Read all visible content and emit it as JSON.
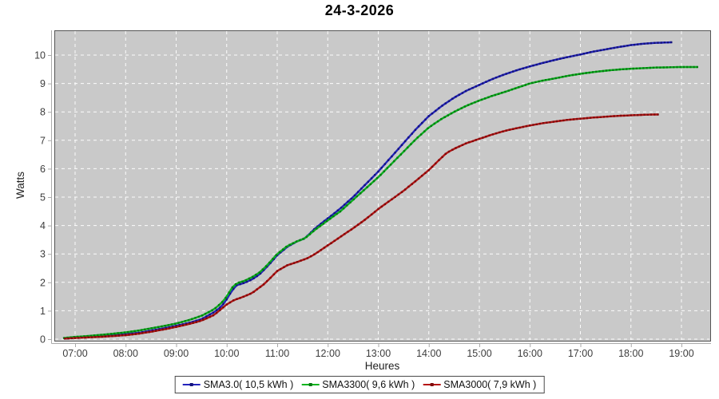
{
  "title": "24-3-2026",
  "axes": {
    "x_title": "Heures",
    "y_title": "Watts",
    "x_tick_labels": [
      "07:00",
      "08:00",
      "09:00",
      "10:00",
      "11:00",
      "12:00",
      "13:00",
      "14:00",
      "15:00",
      "16:00",
      "17:00",
      "18:00",
      "19:00"
    ],
    "y_tick_labels": [
      "0",
      "1",
      "2",
      "3",
      "4",
      "5",
      "6",
      "7",
      "8",
      "9",
      "10"
    ]
  },
  "legend": {
    "items": [
      {
        "label": "SMA3.0( 10,5 kWh )",
        "color": "#2323bc",
        "marker_color": "#14147a"
      },
      {
        "label": "SMA3300( 9,6 kWh )",
        "color": "#0ab41e",
        "marker_color": "#067a12"
      },
      {
        "label": "SMA3000( 7,9 kWh )",
        "color": "#b51414",
        "marker_color": "#7c0c0c"
      }
    ]
  },
  "style": {
    "plot_background": "#c9c9c9",
    "plot_border": "#555555",
    "grid_color": "#ffffff",
    "axis_line_color": "#aaaaaa"
  },
  "chart_data": {
    "type": "line",
    "title": "24-3-2026",
    "xlabel": "Heures",
    "ylabel": "Watts",
    "x_unit": "hour_of_day_decimal",
    "xlim": [
      6.59,
      19.57
    ],
    "ylim": [
      -0.06,
      10.93
    ],
    "x_ticks_hours": [
      7,
      8,
      9,
      10,
      11,
      12,
      13,
      14,
      15,
      16,
      17,
      18,
      19
    ],
    "y_ticks": [
      0,
      1,
      2,
      3,
      4,
      5,
      6,
      7,
      8,
      9,
      10
    ],
    "grid": "white dashed on gray background",
    "legend_position": "bottom-center",
    "series": [
      {
        "name": "SMA3.0( 10,5 kWh )",
        "total_kwh_label": "10,5 kWh",
        "color": "#2323bc",
        "points": [
          [
            6.8,
            0.02
          ],
          [
            7.0,
            0.05
          ],
          [
            7.25,
            0.07
          ],
          [
            7.5,
            0.1
          ],
          [
            7.75,
            0.13
          ],
          [
            8.0,
            0.17
          ],
          [
            8.25,
            0.22
          ],
          [
            8.5,
            0.3
          ],
          [
            8.75,
            0.38
          ],
          [
            9.0,
            0.47
          ],
          [
            9.25,
            0.57
          ],
          [
            9.5,
            0.7
          ],
          [
            9.75,
            0.95
          ],
          [
            9.9,
            1.15
          ],
          [
            10.0,
            1.4
          ],
          [
            10.1,
            1.7
          ],
          [
            10.2,
            1.9
          ],
          [
            10.35,
            1.98
          ],
          [
            10.5,
            2.1
          ],
          [
            10.65,
            2.28
          ],
          [
            10.8,
            2.55
          ],
          [
            11.0,
            2.95
          ],
          [
            11.2,
            3.25
          ],
          [
            11.4,
            3.45
          ],
          [
            11.55,
            3.55
          ],
          [
            11.75,
            3.9
          ],
          [
            12.0,
            4.25
          ],
          [
            12.25,
            4.6
          ],
          [
            12.5,
            5.0
          ],
          [
            12.75,
            5.45
          ],
          [
            13.0,
            5.9
          ],
          [
            13.25,
            6.4
          ],
          [
            13.5,
            6.9
          ],
          [
            13.75,
            7.4
          ],
          [
            14.0,
            7.85
          ],
          [
            14.25,
            8.2
          ],
          [
            14.5,
            8.5
          ],
          [
            14.75,
            8.75
          ],
          [
            15.0,
            8.95
          ],
          [
            15.25,
            9.15
          ],
          [
            15.5,
            9.32
          ],
          [
            15.75,
            9.47
          ],
          [
            16.0,
            9.6
          ],
          [
            16.25,
            9.72
          ],
          [
            16.5,
            9.83
          ],
          [
            16.75,
            9.93
          ],
          [
            17.0,
            10.02
          ],
          [
            17.25,
            10.12
          ],
          [
            17.5,
            10.2
          ],
          [
            17.75,
            10.28
          ],
          [
            18.0,
            10.35
          ],
          [
            18.25,
            10.4
          ],
          [
            18.5,
            10.43
          ],
          [
            18.83,
            10.45
          ]
        ]
      },
      {
        "name": "SMA3300( 9,6 kWh )",
        "total_kwh_label": "9,6 kWh",
        "color": "#0ab41e",
        "points": [
          [
            6.78,
            0.04
          ],
          [
            7.0,
            0.08
          ],
          [
            7.25,
            0.11
          ],
          [
            7.5,
            0.15
          ],
          [
            7.75,
            0.19
          ],
          [
            8.0,
            0.24
          ],
          [
            8.25,
            0.3
          ],
          [
            8.5,
            0.38
          ],
          [
            8.75,
            0.46
          ],
          [
            9.0,
            0.55
          ],
          [
            9.25,
            0.67
          ],
          [
            9.5,
            0.82
          ],
          [
            9.75,
            1.05
          ],
          [
            9.9,
            1.28
          ],
          [
            10.0,
            1.5
          ],
          [
            10.1,
            1.8
          ],
          [
            10.2,
            1.97
          ],
          [
            10.35,
            2.05
          ],
          [
            10.5,
            2.18
          ],
          [
            10.65,
            2.35
          ],
          [
            10.8,
            2.6
          ],
          [
            11.0,
            3.0
          ],
          [
            11.2,
            3.28
          ],
          [
            11.4,
            3.45
          ],
          [
            11.55,
            3.55
          ],
          [
            11.75,
            3.85
          ],
          [
            12.0,
            4.18
          ],
          [
            12.25,
            4.5
          ],
          [
            12.5,
            4.9
          ],
          [
            12.75,
            5.3
          ],
          [
            13.0,
            5.7
          ],
          [
            13.25,
            6.15
          ],
          [
            13.5,
            6.6
          ],
          [
            13.75,
            7.05
          ],
          [
            14.0,
            7.45
          ],
          [
            14.25,
            7.75
          ],
          [
            14.5,
            8.0
          ],
          [
            14.75,
            8.22
          ],
          [
            15.0,
            8.4
          ],
          [
            15.25,
            8.56
          ],
          [
            15.5,
            8.7
          ],
          [
            15.75,
            8.85
          ],
          [
            16.0,
            9.0
          ],
          [
            16.25,
            9.1
          ],
          [
            16.5,
            9.18
          ],
          [
            16.75,
            9.27
          ],
          [
            17.0,
            9.34
          ],
          [
            17.25,
            9.4
          ],
          [
            17.5,
            9.45
          ],
          [
            17.75,
            9.49
          ],
          [
            18.0,
            9.52
          ],
          [
            18.5,
            9.56
          ],
          [
            19.0,
            9.58
          ],
          [
            19.32,
            9.58
          ]
        ]
      },
      {
        "name": "SMA3000( 7,9 kWh )",
        "total_kwh_label": "7,9 kWh",
        "color": "#b51414",
        "points": [
          [
            6.8,
            0.02
          ],
          [
            7.0,
            0.04
          ],
          [
            7.25,
            0.06
          ],
          [
            7.5,
            0.08
          ],
          [
            7.75,
            0.11
          ],
          [
            8.0,
            0.14
          ],
          [
            8.25,
            0.19
          ],
          [
            8.5,
            0.26
          ],
          [
            8.75,
            0.34
          ],
          [
            9.0,
            0.43
          ],
          [
            9.25,
            0.53
          ],
          [
            9.5,
            0.65
          ],
          [
            9.75,
            0.85
          ],
          [
            10.0,
            1.22
          ],
          [
            10.15,
            1.38
          ],
          [
            10.3,
            1.47
          ],
          [
            10.5,
            1.62
          ],
          [
            10.75,
            1.95
          ],
          [
            11.0,
            2.4
          ],
          [
            11.2,
            2.6
          ],
          [
            11.4,
            2.72
          ],
          [
            11.6,
            2.85
          ],
          [
            11.75,
            3.0
          ],
          [
            12.0,
            3.3
          ],
          [
            12.25,
            3.6
          ],
          [
            12.5,
            3.9
          ],
          [
            12.75,
            4.22
          ],
          [
            13.0,
            4.58
          ],
          [
            13.25,
            4.9
          ],
          [
            13.5,
            5.22
          ],
          [
            13.75,
            5.58
          ],
          [
            14.0,
            5.95
          ],
          [
            14.2,
            6.3
          ],
          [
            14.35,
            6.55
          ],
          [
            14.5,
            6.7
          ],
          [
            14.75,
            6.9
          ],
          [
            15.0,
            7.05
          ],
          [
            15.25,
            7.2
          ],
          [
            15.5,
            7.33
          ],
          [
            15.75,
            7.43
          ],
          [
            16.0,
            7.52
          ],
          [
            16.25,
            7.6
          ],
          [
            16.5,
            7.66
          ],
          [
            16.75,
            7.72
          ],
          [
            17.0,
            7.76
          ],
          [
            17.25,
            7.8
          ],
          [
            17.5,
            7.83
          ],
          [
            17.75,
            7.86
          ],
          [
            18.0,
            7.88
          ],
          [
            18.3,
            7.9
          ],
          [
            18.58,
            7.91
          ]
        ]
      }
    ]
  }
}
